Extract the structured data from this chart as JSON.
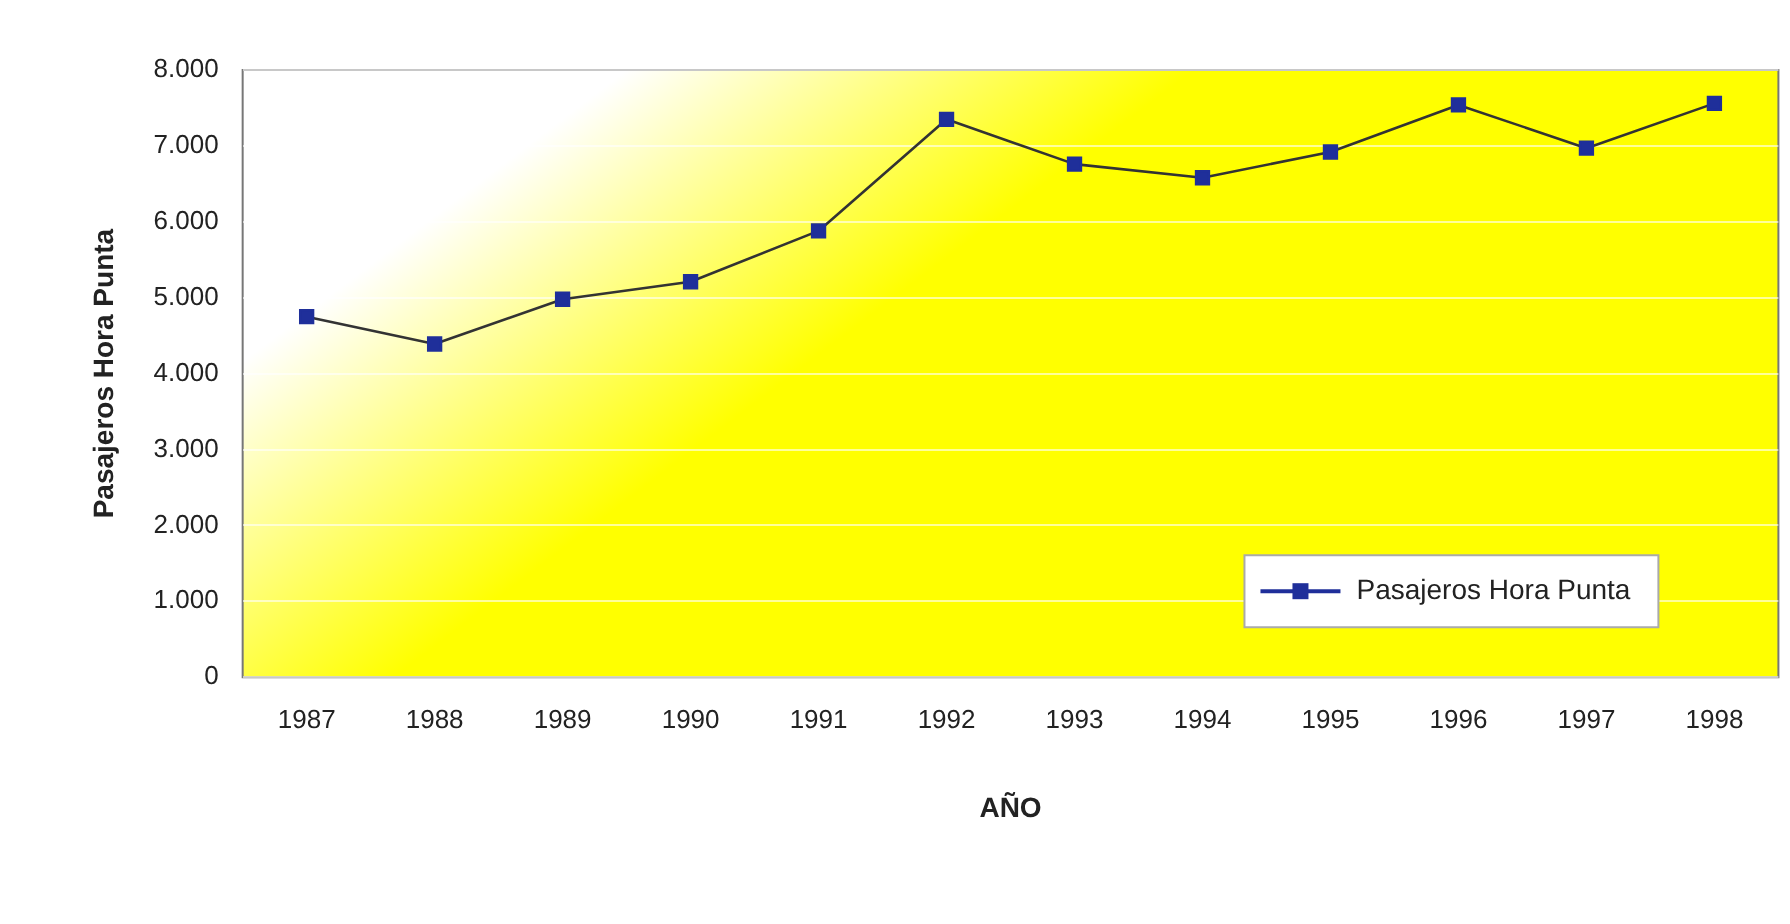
{
  "chart_data": {
    "type": "line",
    "xlabel": "AÑO",
    "ylabel": "Pasajeros Hora Punta",
    "categories": [
      "1987",
      "1988",
      "1989",
      "1990",
      "1991",
      "1992",
      "1993",
      "1994",
      "1995",
      "1996",
      "1997",
      "1998"
    ],
    "series": [
      {
        "name": "Pasajeros Hora Punta",
        "color": "#1f2f9a",
        "values": [
          4750,
          4390,
          4980,
          5210,
          5880,
          7350,
          6760,
          6580,
          6920,
          7540,
          6970,
          7560
        ]
      }
    ],
    "ylim": [
      0,
      8000
    ],
    "yticks": [
      {
        "value": 0,
        "label": "0"
      },
      {
        "value": 1000,
        "label": "1.000"
      },
      {
        "value": 2000,
        "label": "2.000"
      },
      {
        "value": 3000,
        "label": "3.000"
      },
      {
        "value": 4000,
        "label": "4.000"
      },
      {
        "value": 5000,
        "label": "5.000"
      },
      {
        "value": 6000,
        "label": "6.000"
      },
      {
        "value": 7000,
        "label": "7.000"
      },
      {
        "value": 8000,
        "label": "8.000"
      }
    ],
    "grid": "y",
    "legend": "bottom right",
    "marker": "square",
    "line_style": "solid"
  }
}
